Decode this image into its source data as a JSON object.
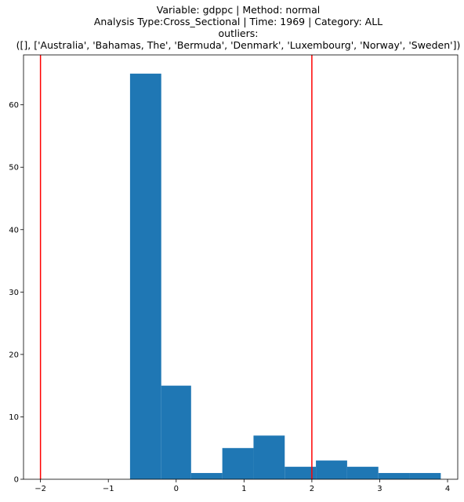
{
  "chart_data": {
    "type": "bar",
    "title_lines": [
      "Variable: gdppc | Method: normal",
      "Analysis Type:Cross_Sectional | Time: 1969 | Category: ALL",
      "outliers:",
      "([], ['Australia', 'Bahamas, The', 'Bermuda', 'Denmark', 'Luxembourg', 'Norway', 'Sweden'])"
    ],
    "xlabel": "",
    "ylabel": "",
    "xlim": [
      -2.25,
      4.15
    ],
    "ylim": [
      0,
      68
    ],
    "xticks": [
      -2,
      -1,
      0,
      1,
      2,
      3,
      4
    ],
    "yticks": [
      0,
      10,
      20,
      30,
      40,
      50,
      60
    ],
    "bins": [
      {
        "x0": -0.68,
        "x1": -0.22,
        "value": 65
      },
      {
        "x0": -0.22,
        "x1": 0.22,
        "value": 15
      },
      {
        "x0": 0.22,
        "x1": 0.68,
        "value": 1
      },
      {
        "x0": 0.68,
        "x1": 1.14,
        "value": 5
      },
      {
        "x0": 1.14,
        "x1": 1.6,
        "value": 7
      },
      {
        "x0": 1.6,
        "x1": 2.06,
        "value": 2
      },
      {
        "x0": 2.06,
        "x1": 2.52,
        "value": 3
      },
      {
        "x0": 2.52,
        "x1": 2.98,
        "value": 2
      },
      {
        "x0": 2.98,
        "x1": 3.44,
        "value": 1
      },
      {
        "x0": 3.44,
        "x1": 3.9,
        "value": 1
      }
    ],
    "vlines": [
      {
        "x": -2,
        "color": "#ff0000"
      },
      {
        "x": 2,
        "color": "#ff0000"
      }
    ],
    "bar_color": "#1f77b4",
    "grid": false,
    "legend": "none"
  }
}
